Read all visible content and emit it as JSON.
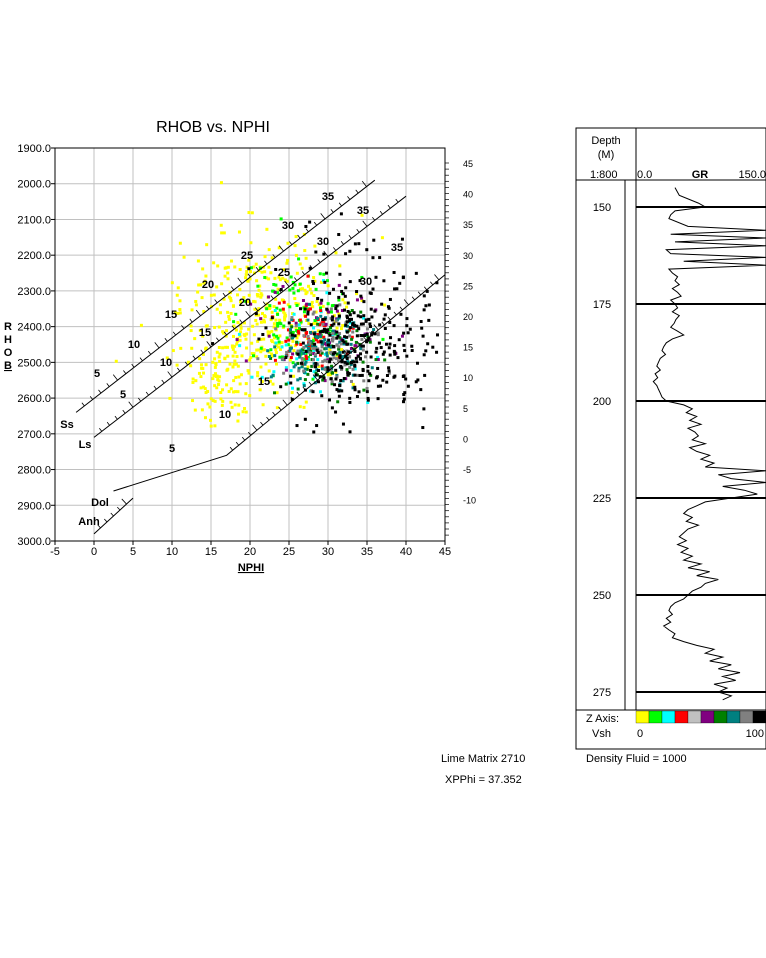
{
  "crossplot": {
    "title": "RHOB vs. NPHI",
    "xlabel": "NPHI",
    "ylabel_letters": [
      "R",
      "H",
      "O",
      "B"
    ],
    "x_ticks": [
      "-5",
      "0",
      "5",
      "10",
      "15",
      "20",
      "25",
      "30",
      "35",
      "40",
      "45"
    ],
    "y_ticks": [
      "1900.0",
      "2000.0",
      "2100.0",
      "2200.0",
      "2300.0",
      "2400.0",
      "2500.0",
      "2600.0",
      "2700.0",
      "2800.0",
      "2900.0",
      "3000.0"
    ],
    "right_ticks": [
      "45",
      "40",
      "35",
      "30",
      "25",
      "20",
      "15",
      "10",
      "5",
      "0",
      "-5",
      "-10"
    ]
  },
  "lithology_lines": [
    {
      "name": "Ss",
      "label": "Ss",
      "porosity_labels": [
        "5",
        "10",
        "15",
        "20",
        "25",
        "30",
        "35"
      ]
    },
    {
      "name": "Ls",
      "label": "Ls",
      "porosity_labels": [
        "5",
        "10",
        "15",
        "20",
        "25",
        "30",
        "35"
      ]
    },
    {
      "name": "Dol",
      "label": "Dol",
      "porosity_labels": [
        "5",
        "10",
        "15",
        "30",
        "35"
      ]
    },
    {
      "name": "Anh",
      "label": "Anh",
      "porosity_labels": []
    }
  ],
  "chart_data": [
    {
      "type": "scatter",
      "title": "RHOB vs. NPHI",
      "xlabel": "NPHI",
      "ylabel": "RHOB",
      "xlim": [
        -5,
        45
      ],
      "ylim": [
        3000,
        1900
      ],
      "grid": true,
      "x_right_axis_ticks": [
        45,
        40,
        35,
        30,
        25,
        20,
        15,
        10,
        5,
        0,
        -5,
        -10
      ],
      "lithology_lines": {
        "Ss": [
          [
            -2.3,
            2640
          ],
          [
            36,
            1990
          ]
        ],
        "Ls": [
          [
            0,
            2710
          ],
          [
            40,
            2035
          ]
        ],
        "Dol": [
          [
            2.5,
            2860
          ],
          [
            17,
            2760
          ],
          [
            45,
            2255
          ]
        ],
        "Anh": [
          [
            0,
            2980
          ],
          [
            5,
            2880
          ]
        ]
      },
      "z_axis": {
        "name": "Vsh",
        "min": 0,
        "max": 100,
        "colors": [
          "#ffff00",
          "#00ff00",
          "#00ffff",
          "#ff0000",
          "#c0c0c0",
          "#800080",
          "#008000",
          "#008080",
          "#808080",
          "#000000"
        ]
      },
      "clusters": [
        {
          "color": "#ffff00",
          "cx": 22,
          "cy": 2370,
          "sx": 5.5,
          "sy": 110,
          "n": 380
        },
        {
          "color": "#ffff00",
          "cx": 16,
          "cy": 2530,
          "sx": 2.2,
          "sy": 70,
          "n": 90
        },
        {
          "color": "#00ff00",
          "cx": 26,
          "cy": 2380,
          "sx": 3.5,
          "sy": 70,
          "n": 90
        },
        {
          "color": "#00ffff",
          "cx": 27,
          "cy": 2450,
          "sx": 4,
          "sy": 80,
          "n": 50
        },
        {
          "color": "#ff0000",
          "cx": 28,
          "cy": 2430,
          "sx": 3,
          "sy": 60,
          "n": 60
        },
        {
          "color": "#800080",
          "cx": 30,
          "cy": 2420,
          "sx": 4,
          "sy": 70,
          "n": 55
        },
        {
          "color": "#008000",
          "cx": 29,
          "cy": 2470,
          "sx": 3.5,
          "sy": 60,
          "n": 70
        },
        {
          "color": "#008080",
          "cx": 29,
          "cy": 2460,
          "sx": 3,
          "sy": 55,
          "n": 110
        },
        {
          "color": "#808080",
          "cx": 30,
          "cy": 2470,
          "sx": 3,
          "sy": 50,
          "n": 90
        },
        {
          "color": "#000000",
          "cx": 34,
          "cy": 2430,
          "sx": 5,
          "sy": 110,
          "n": 330
        }
      ]
    },
    {
      "type": "line",
      "title": "GR",
      "ylabel": "Depth (M)",
      "xlim": [
        0.0,
        150.0
      ],
      "ylim": [
        142,
        278
      ],
      "depth_marks": [
        150,
        175,
        200,
        225,
        250,
        275
      ],
      "series": [
        {
          "name": "GR",
          "segments": [
            [
              145,
              45
            ],
            [
              147,
              50
            ],
            [
              149,
              72
            ],
            [
              150,
              80
            ],
            [
              151,
              45
            ],
            [
              152,
              40
            ],
            [
              153,
              38
            ],
            [
              155,
              60
            ],
            [
              156,
              150
            ],
            [
              157,
              40
            ],
            [
              158,
              150
            ],
            [
              159,
              45
            ],
            [
              160,
              150
            ],
            [
              161,
              35
            ],
            [
              162,
              40
            ],
            [
              163,
              150
            ],
            [
              164,
              55
            ],
            [
              165,
              150
            ],
            [
              166,
              38
            ],
            [
              167,
              42
            ],
            [
              168,
              48
            ],
            [
              169,
              45
            ],
            [
              170,
              50
            ],
            [
              171,
              42
            ],
            [
              172,
              48
            ],
            [
              173,
              52
            ],
            [
              174,
              40
            ],
            [
              175,
              45
            ],
            [
              176,
              48
            ],
            [
              177,
              42
            ],
            [
              178,
              50
            ],
            [
              179,
              46
            ],
            [
              180,
              44
            ],
            [
              181,
              40
            ],
            [
              182,
              48
            ],
            [
              183,
              55
            ],
            [
              184,
              42
            ],
            [
              185,
              35
            ],
            [
              186,
              32
            ],
            [
              187,
              30
            ],
            [
              188,
              34
            ],
            [
              189,
              28
            ],
            [
              190,
              26
            ],
            [
              191,
              24
            ],
            [
              192,
              28
            ],
            [
              193,
              22
            ],
            [
              194,
              25
            ],
            [
              195,
              20
            ],
            [
              196,
              24
            ],
            [
              197,
              26
            ],
            [
              198,
              28
            ],
            [
              199,
              30
            ],
            [
              200,
              35
            ],
            [
              201,
              55
            ],
            [
              202,
              65
            ],
            [
              203,
              58
            ],
            [
              204,
              70
            ],
            [
              205,
              62
            ],
            [
              206,
              75
            ],
            [
              207,
              60
            ],
            [
              208,
              68
            ],
            [
              209,
              72
            ],
            [
              210,
              65
            ],
            [
              211,
              80
            ],
            [
              212,
              62
            ],
            [
              213,
              70
            ],
            [
              214,
              85
            ],
            [
              215,
              75
            ],
            [
              216,
              90
            ],
            [
              217,
              80
            ],
            [
              218,
              150
            ],
            [
              219,
              95
            ],
            [
              220,
              110
            ],
            [
              221,
              150
            ],
            [
              222,
              100
            ],
            [
              223,
              125
            ],
            [
              224,
              140
            ],
            [
              225,
              110
            ],
            [
              226,
              80
            ],
            [
              227,
              70
            ],
            [
              228,
              60
            ],
            [
              229,
              55
            ],
            [
              230,
              65
            ],
            [
              231,
              58
            ],
            [
              232,
              72
            ],
            [
              233,
              60
            ],
            [
              234,
              55
            ],
            [
              235,
              50
            ],
            [
              236,
              58
            ],
            [
              237,
              48
            ],
            [
              238,
              60
            ],
            [
              239,
              52
            ],
            [
              240,
              65
            ],
            [
              241,
              55
            ],
            [
              242,
              75
            ],
            [
              243,
              60
            ],
            [
              244,
              85
            ],
            [
              245,
              70
            ],
            [
              246,
              95
            ],
            [
              247,
              80
            ],
            [
              248,
              75
            ],
            [
              249,
              65
            ],
            [
              250,
              60
            ],
            [
              251,
              55
            ],
            [
              252,
              45
            ],
            [
              253,
              40
            ],
            [
              254,
              38
            ],
            [
              255,
              42
            ],
            [
              256,
              35
            ],
            [
              257,
              40
            ],
            [
              258,
              32
            ],
            [
              259,
              38
            ],
            [
              260,
              45
            ],
            [
              261,
              42
            ],
            [
              262,
              55
            ],
            [
              263,
              70
            ],
            [
              264,
              90
            ],
            [
              265,
              80
            ],
            [
              266,
              100
            ],
            [
              267,
              85
            ],
            [
              268,
              110
            ],
            [
              269,
              95
            ],
            [
              270,
              120
            ],
            [
              271,
              100
            ],
            [
              272,
              115
            ],
            [
              273,
              90
            ],
            [
              274,
              105
            ],
            [
              275,
              95
            ],
            [
              276,
              110
            ],
            [
              277,
              100
            ]
          ]
        }
      ]
    }
  ],
  "log_header": {
    "depth_label_line1": "Depth",
    "depth_label_line2": "(M)",
    "scale": "1:800",
    "gr_min": "0.0",
    "gr_name": "GR",
    "gr_max": "150.0"
  },
  "z_axis_box": {
    "label": "Z Axis:",
    "var": "Vsh",
    "min": "0",
    "max": "100"
  },
  "footer": {
    "matrix": "Lime Matrix  2710",
    "fluid": "Density Fluid =  1000",
    "xpphi": "XPPhi = 37.352"
  }
}
